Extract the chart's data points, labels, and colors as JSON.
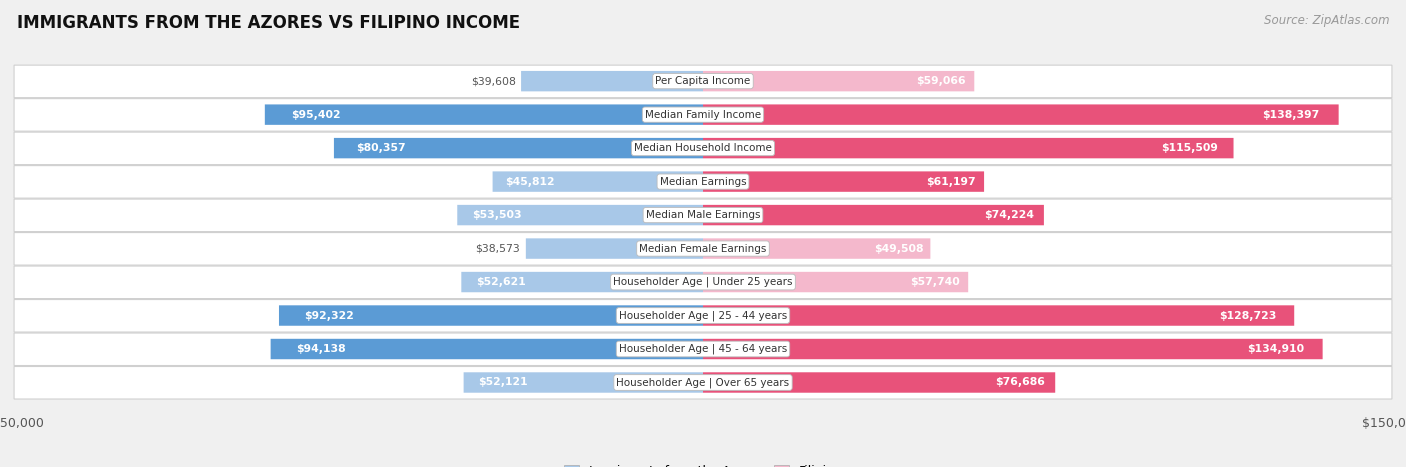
{
  "title": "IMMIGRANTS FROM THE AZORES VS FILIPINO INCOME",
  "source": "Source: ZipAtlas.com",
  "categories": [
    "Per Capita Income",
    "Median Family Income",
    "Median Household Income",
    "Median Earnings",
    "Median Male Earnings",
    "Median Female Earnings",
    "Householder Age | Under 25 years",
    "Householder Age | 25 - 44 years",
    "Householder Age | 45 - 64 years",
    "Householder Age | Over 65 years"
  ],
  "azores_values": [
    39608,
    95402,
    80357,
    45812,
    53503,
    38573,
    52621,
    92322,
    94138,
    52121
  ],
  "filipino_values": [
    59066,
    138397,
    115509,
    61197,
    74224,
    49508,
    57740,
    128723,
    134910,
    76686
  ],
  "azores_labels": [
    "$39,608",
    "$95,402",
    "$80,357",
    "$45,812",
    "$53,503",
    "$38,573",
    "$52,621",
    "$92,322",
    "$94,138",
    "$52,121"
  ],
  "filipino_labels": [
    "$59,066",
    "$138,397",
    "$115,509",
    "$61,197",
    "$74,224",
    "$49,508",
    "$57,740",
    "$128,723",
    "$134,910",
    "$76,686"
  ],
  "azores_color_light": "#a8c8e8",
  "azores_color_dark": "#5b9bd5",
  "filipino_color_light": "#f4b8cc",
  "filipino_color_dark": "#e8527a",
  "azores_threshold": 60000,
  "filipino_threshold": 60000,
  "max_value": 150000,
  "background_color": "#f0f0f0",
  "row_bg_color": "#ffffff",
  "legend_azores": "Immigrants from the Azores",
  "legend_filipino": "Filipino"
}
